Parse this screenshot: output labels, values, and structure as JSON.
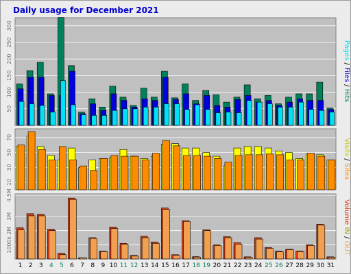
{
  "colors": {
    "hits": "#00805b",
    "files": "#0000dd",
    "pages": "#00e1f5",
    "visits": "#ffff00",
    "sites": "#ff8c00",
    "kbin": "#e03a10",
    "kbout": "#f0a050",
    "title": "#0000cc",
    "panel": "#c0c0c0",
    "weekday": "#000000",
    "weekend": "#00805b"
  },
  "chart_data": [
    {
      "type": "bar",
      "title": "Daily usage for December 2021",
      "categories": [
        "1",
        "2",
        "3",
        "4",
        "5",
        "6",
        "7",
        "8",
        "9",
        "10",
        "11",
        "12",
        "13",
        "14",
        "15",
        "16",
        "17",
        "18",
        "19",
        "20",
        "21",
        "22",
        "23",
        "24",
        "25",
        "26",
        "27",
        "28",
        "29",
        "30",
        "31"
      ],
      "weekend_days": [
        "4",
        "5",
        "11",
        "12",
        "18",
        "19",
        "25",
        "26"
      ],
      "ylim": [
        0,
        320
      ],
      "yticks": [
        "50",
        "100",
        "150",
        "200",
        "250",
        "300"
      ],
      "legend": [
        "Hits",
        "Files",
        "Pages"
      ],
      "series": [
        {
          "name": "Hits",
          "values": [
            125,
            165,
            190,
            95,
            325,
            180,
            40,
            80,
            55,
            118,
            85,
            60,
            112,
            85,
            163,
            83,
            125,
            75,
            105,
            92,
            70,
            85,
            122,
            80,
            90,
            65,
            85,
            95,
            95,
            130,
            52
          ]
        },
        {
          "name": "Files",
          "values": [
            110,
            145,
            145,
            90,
            90,
            163,
            35,
            65,
            45,
            95,
            75,
            55,
            80,
            75,
            145,
            78,
            95,
            65,
            90,
            60,
            55,
            78,
            90,
            70,
            75,
            60,
            70,
            80,
            75,
            75,
            48
          ]
        },
        {
          "name": "Pages",
          "values": [
            72,
            65,
            60,
            40,
            135,
            62,
            32,
            30,
            30,
            45,
            50,
            50,
            55,
            55,
            65,
            65,
            48,
            62,
            48,
            38,
            40,
            38,
            75,
            70,
            65,
            55,
            55,
            70,
            48,
            45,
            40
          ]
        }
      ]
    },
    {
      "type": "bar",
      "ylim": [
        0,
        80
      ],
      "yticks": [
        "10",
        "30",
        "50",
        "70"
      ],
      "legend": [
        "Visits",
        "Sites"
      ],
      "series": [
        {
          "name": "Visits",
          "values": [
            58,
            72,
            58,
            46,
            40,
            56,
            30,
            40,
            42,
            43,
            54,
            45,
            42,
            45,
            61,
            62,
            56,
            56,
            50,
            45,
            32,
            56,
            58,
            58,
            56,
            52,
            50,
            42,
            48,
            47,
            40
          ]
        },
        {
          "name": "Sites",
          "values": [
            60,
            78,
            54,
            40,
            58,
            40,
            32,
            26,
            42,
            46,
            45,
            45,
            40,
            49,
            66,
            59,
            46,
            46,
            45,
            42,
            37,
            46,
            47,
            47,
            48,
            47,
            40,
            40,
            49,
            45,
            40
          ]
        }
      ]
    },
    {
      "type": "bar",
      "ylim": [
        0,
        4500000
      ],
      "yticks": [
        "1000k",
        "2M",
        "3M",
        "4.5M"
      ],
      "legend": [
        "Volume",
        "IN",
        "OUT"
      ],
      "series": [
        {
          "name": "IN",
          "values": [
            2200000,
            3200000,
            3150000,
            2100000,
            400000,
            4300000,
            80000,
            1500000,
            560000,
            2250000,
            1100000,
            250000,
            1600000,
            1200000,
            3600000,
            300000,
            2700000,
            160000,
            2050000,
            1000000,
            1570000,
            1150000,
            150000,
            1500000,
            800000,
            550000,
            680000,
            560000,
            1000000,
            2450000,
            150000
          ]
        },
        {
          "name": "OUT",
          "values": [
            2050000,
            3050000,
            3050000,
            2000000,
            300000,
            4200000,
            70000,
            1450000,
            520000,
            2150000,
            1050000,
            200000,
            1500000,
            1100000,
            3500000,
            250000,
            2650000,
            120000,
            2000000,
            950000,
            1500000,
            1050000,
            100000,
            1400000,
            750000,
            500000,
            650000,
            520000,
            950000,
            2400000,
            100000
          ]
        }
      ]
    }
  ]
}
